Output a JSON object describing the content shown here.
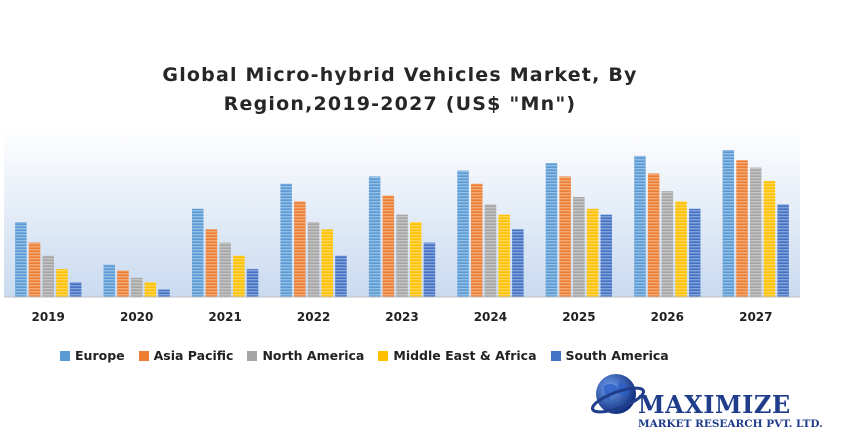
{
  "chart_data": {
    "type": "bar",
    "title_lines": [
      "Global Micro-hybrid Vehicles Market, By",
      "Region,2019-2027 (US$ \"Mn\")"
    ],
    "categories": [
      "2019",
      "2020",
      "2021",
      "2022",
      "2023",
      "2024",
      "2025",
      "2026",
      "2027"
    ],
    "ylim": [
      0,
      100
    ],
    "grid": false,
    "legend_position": "bottom",
    "series": [
      {
        "name": "Europe",
        "color": "#5b9bd5",
        "values": [
          51,
          22,
          60,
          77,
          82,
          86,
          91,
          96,
          100
        ]
      },
      {
        "name": "Asia Pacific",
        "color": "#ed7d31",
        "values": [
          37,
          18,
          46,
          65,
          69,
          77,
          82,
          84,
          93
        ]
      },
      {
        "name": "North America",
        "color": "#a5a5a5",
        "values": [
          28,
          13,
          37,
          51,
          56,
          63,
          68,
          72,
          88
        ]
      },
      {
        "name": "Middle East & Africa",
        "color": "#ffc000",
        "values": [
          19,
          10,
          28,
          46,
          51,
          56,
          60,
          65,
          79
        ]
      },
      {
        "name": "South America",
        "color": "#4472c4",
        "values": [
          10,
          5,
          19,
          28,
          37,
          46,
          56,
          60,
          63
        ]
      }
    ]
  },
  "logo": {
    "name": "MAXIMIZE",
    "tagline": "MARKET RESEARCH PVT. LTD.",
    "icon": "globe-icon"
  }
}
